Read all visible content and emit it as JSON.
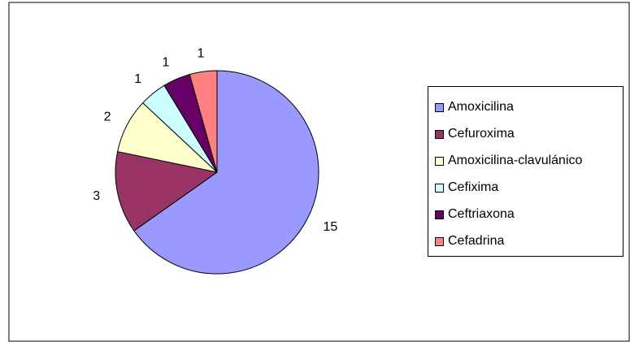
{
  "chart_data": {
    "type": "pie",
    "title": "",
    "categories": [
      "Amoxicilina",
      "Cefuroxima",
      "Amoxicilina-clavulánico",
      "Cefixima",
      "Ceftriaxona",
      "Cefadrina"
    ],
    "values": [
      15,
      3,
      2,
      1,
      1,
      1
    ],
    "data_labels": [
      "15",
      "3",
      "2",
      "1",
      "1",
      "1"
    ],
    "colors": [
      "#9999FF",
      "#993366",
      "#FFFFCC",
      "#CCFFFF",
      "#660066",
      "#FF8080"
    ],
    "start_angle": "12 o'clock",
    "direction": "clockwise",
    "legend_position": "right",
    "legend": [
      {
        "label": "Amoxicilina",
        "color": "#9999FF"
      },
      {
        "label": "Cefuroxima",
        "color": "#993366"
      },
      {
        "label": "Amoxicilina-clavulánico",
        "color": "#FFFFCC"
      },
      {
        "label": "Cefixima",
        "color": "#CCFFFF"
      },
      {
        "label": "Ceftriaxona",
        "color": "#660066"
      },
      {
        "label": "Cefadrina",
        "color": "#FF8080"
      }
    ]
  }
}
